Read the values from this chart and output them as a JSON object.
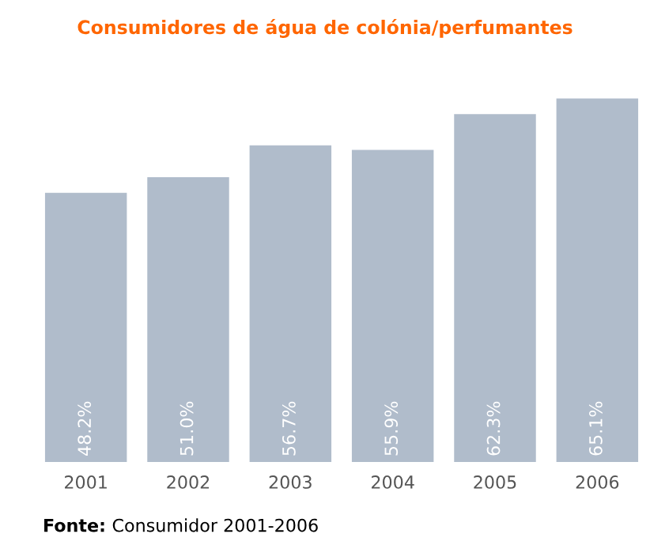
{
  "chart_data": {
    "type": "bar",
    "title": "Consumidores de água de colónia/perfumantes",
    "categories": [
      "2001",
      "2002",
      "2003",
      "2004",
      "2005",
      "2006"
    ],
    "values": [
      48.2,
      51.0,
      56.7,
      55.9,
      62.3,
      65.1
    ],
    "value_labels": [
      "48.2%",
      "51.0%",
      "56.7%",
      "55.9%",
      "62.3%",
      "65.1%"
    ],
    "color": "#b0bccb",
    "grid": false,
    "annotations": [
      "Fonte: Consumidor 2001-2006"
    ]
  }
}
